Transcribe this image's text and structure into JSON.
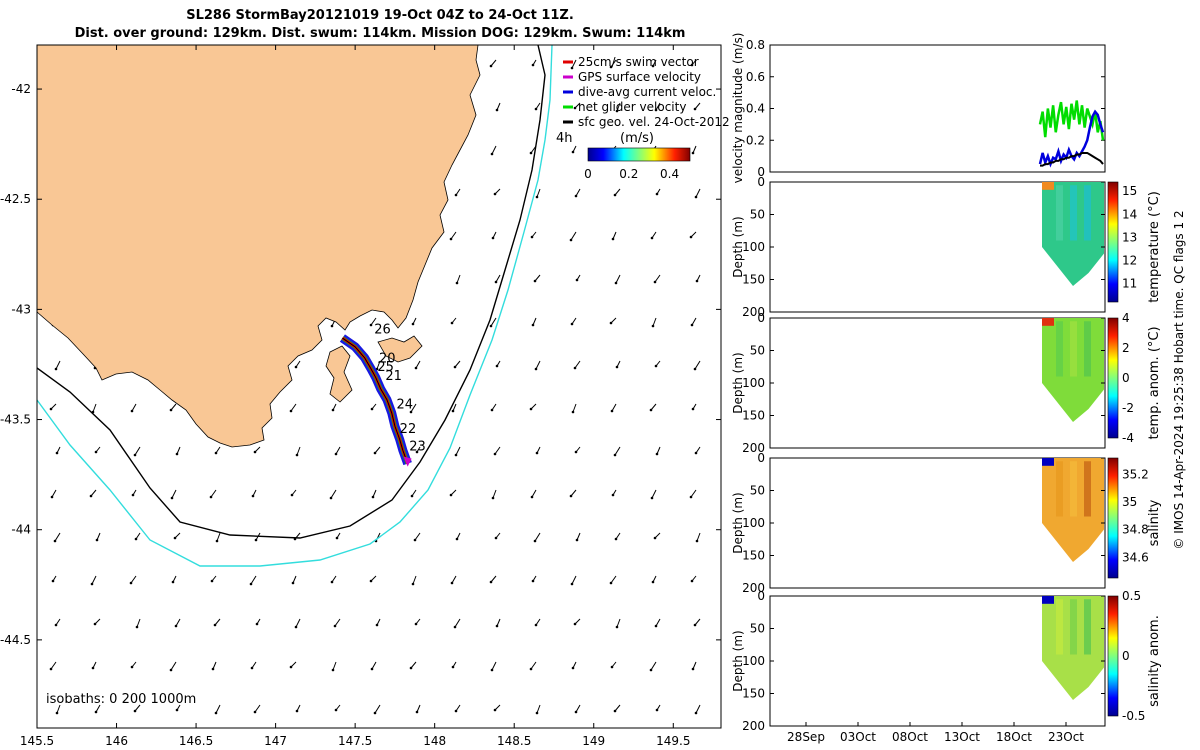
{
  "titles": {
    "line1": "SL286 StormBay20121019 19-Oct 04Z to 24-Oct 11Z.",
    "line2": "Dist. over ground: 129km. Dist. swum: 114km. Mission DOG: 129km. Swum: 114km"
  },
  "footer": {
    "credit": "© IMOS 14-Apr-2024 19:25:38 Hobart time. QC flags 1  2"
  },
  "colors": {
    "land": "#f9c795",
    "swim": "#e00000",
    "gps": "#cc00cc",
    "dive": "#0000dd",
    "net": "#00dd00",
    "isobath200": "#000000",
    "isobath1000": "#33dddd"
  },
  "chart_data": [
    {
      "type": "scatter",
      "name": "map",
      "xlim": [
        145.5,
        149.8
      ],
      "ylim": [
        -44.9,
        -41.8
      ],
      "xticks": [
        "145.5",
        "146",
        "146.5",
        "147",
        "147.5",
        "148",
        "148.5",
        "149",
        "149.5"
      ],
      "xtick_values": [
        145.5,
        146,
        146.5,
        147,
        147.5,
        148,
        148.5,
        149,
        149.5
      ],
      "yticks": [
        "-42",
        "-42.5",
        "-43",
        "-43.5",
        "-44",
        "-44.5"
      ],
      "ytick_values": [
        -42,
        -42.5,
        -43,
        -43.5,
        -44,
        -44.5
      ],
      "legend": [
        {
          "label": "25cm/s swim vector",
          "color": "#e00000"
        },
        {
          "label": "GPS surface velocity",
          "color": "#cc00cc"
        },
        {
          "label": "dive-avg current veloc.",
          "color": "#0000dd"
        },
        {
          "label": "net glider velocity",
          "color": "#00dd00"
        },
        {
          "label": "sfc geo. vel. 24-Oct-2012",
          "color": "#000000"
        }
      ],
      "legend_extra": "4h",
      "colorbar": {
        "title": "(m/s)",
        "ticks": [
          "0",
          "0.2",
          "0.4"
        ],
        "tick_values": [
          0,
          0.2,
          0.4
        ],
        "range": [
          0,
          0.5
        ]
      },
      "isobaths_label": "isobaths: 0   200  1000m",
      "day_labels": [
        {
          "text": "26",
          "lon": 147.62,
          "lat": -43.11
        },
        {
          "text": "20",
          "lon": 147.65,
          "lat": -43.24
        },
        {
          "text": "25",
          "lon": 147.64,
          "lat": -43.28
        },
        {
          "text": "21",
          "lon": 147.69,
          "lat": -43.32
        },
        {
          "text": "24",
          "lon": 147.76,
          "lat": -43.45
        },
        {
          "text": "22",
          "lon": 147.78,
          "lat": -43.56
        },
        {
          "text": "23",
          "lon": 147.84,
          "lat": -43.64
        }
      ],
      "track": [
        [
          147.42,
          -43.13
        ],
        [
          147.5,
          -43.17
        ],
        [
          147.56,
          -43.22
        ],
        [
          147.6,
          -43.27
        ],
        [
          147.63,
          -43.31
        ],
        [
          147.66,
          -43.36
        ],
        [
          147.7,
          -43.41
        ],
        [
          147.73,
          -43.47
        ],
        [
          147.75,
          -43.53
        ],
        [
          147.78,
          -43.59
        ],
        [
          147.8,
          -43.64
        ],
        [
          147.83,
          -43.7
        ]
      ]
    },
    {
      "type": "line",
      "name": "velocity",
      "ylabel": "velocity magnitude (m/s)",
      "ylim": [
        0,
        0.8
      ],
      "yticks": [
        "0",
        "0.2",
        "0.4",
        "0.6",
        "0.8"
      ],
      "ytick_values": [
        0,
        0.2,
        0.4,
        0.6,
        0.8
      ],
      "series": [
        {
          "color": "#00dd00",
          "values": [
            0.3,
            0.38,
            0.22,
            0.4,
            0.28,
            0.42,
            0.25,
            0.36,
            0.44,
            0.3,
            0.41,
            0.27,
            0.43,
            0.33,
            0.45,
            0.3,
            0.42,
            0.28,
            0.4,
            0.35,
            0.3,
            0.38,
            0.25,
            0.32,
            0.2
          ]
        },
        {
          "color": "#0000dd",
          "values": [
            0.05,
            0.12,
            0.06,
            0.1,
            0.05,
            0.09,
            0.08,
            0.13,
            0.07,
            0.11,
            0.09,
            0.14,
            0.1,
            0.08,
            0.12,
            0.1,
            0.13,
            0.16,
            0.2,
            0.28,
            0.35,
            0.38,
            0.36,
            0.3,
            0.25
          ]
        },
        {
          "color": "#000000",
          "values": [
            0.04,
            0.04,
            0.05,
            0.05,
            0.06,
            0.06,
            0.07,
            0.07,
            0.08,
            0.08,
            0.09,
            0.09,
            0.1,
            0.1,
            0.11,
            0.11,
            0.12,
            0.12,
            0.12,
            0.11,
            0.1,
            0.09,
            0.08,
            0.07,
            0.05
          ]
        }
      ]
    },
    {
      "type": "heatmap",
      "name": "temperature",
      "ylabel": "Depth (m)",
      "cblabel": "temperature (°C)",
      "ylim": [
        0,
        200
      ],
      "yticks": [
        "0",
        "50",
        "100",
        "150",
        "200"
      ],
      "ytick_values": [
        0,
        50,
        100,
        150,
        200
      ],
      "cbticks": [
        "15",
        "14",
        "13",
        "12",
        "11"
      ],
      "cb_values": [
        15,
        14,
        13,
        12,
        11
      ],
      "cb_range": [
        10.2,
        15.4
      ]
    },
    {
      "type": "heatmap",
      "name": "temp-anomaly",
      "ylabel": "Depth (m)",
      "cblabel": "temp. anom. (°C)",
      "ylim": [
        0,
        200
      ],
      "yticks": [
        "0",
        "50",
        "100",
        "150",
        "200"
      ],
      "ytick_values": [
        0,
        50,
        100,
        150,
        200
      ],
      "cbticks": [
        "4",
        "2",
        "0",
        "-2",
        "-4"
      ],
      "cb_values": [
        4,
        2,
        0,
        -2,
        -4
      ],
      "cb_range": [
        -4,
        4
      ]
    },
    {
      "type": "heatmap",
      "name": "salinity",
      "ylabel": "Depth (m)",
      "cblabel": "salinity",
      "ylim": [
        0,
        200
      ],
      "yticks": [
        "0",
        "50",
        "100",
        "150",
        "200"
      ],
      "ytick_values": [
        0,
        50,
        100,
        150,
        200
      ],
      "cbticks": [
        "35.2",
        "35",
        "34.8",
        "34.6"
      ],
      "cb_values": [
        35.2,
        35,
        34.8,
        34.6
      ],
      "cb_range": [
        34.45,
        35.32
      ]
    },
    {
      "type": "heatmap",
      "name": "salinity-anomaly",
      "ylabel": "Depth (m)",
      "cblabel": "salinity anom.",
      "ylim": [
        0,
        200
      ],
      "yticks": [
        "0",
        "50",
        "100",
        "150",
        "200"
      ],
      "ytick_values": [
        0,
        50,
        100,
        150,
        200
      ],
      "cbticks": [
        "0.5",
        "0",
        "-0.5"
      ],
      "cb_values": [
        0.5,
        0,
        -0.5
      ],
      "cb_range": [
        -0.5,
        0.5
      ],
      "xticks": [
        "28Sep",
        "03Oct",
        "08Oct",
        "13Oct",
        "18Oct",
        "23Oct"
      ]
    }
  ]
}
